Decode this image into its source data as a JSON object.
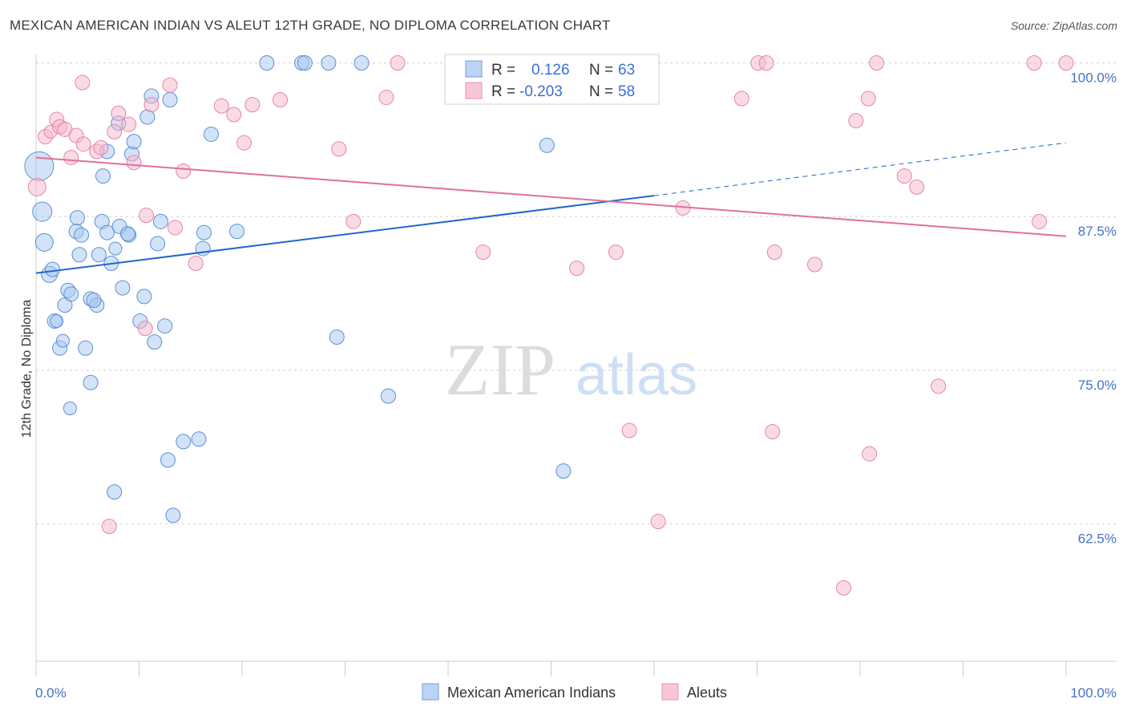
{
  "title": "MEXICAN AMERICAN INDIAN VS ALEUT 12TH GRADE, NO DIPLOMA CORRELATION CHART",
  "source": "Source: ZipAtlas.com",
  "watermark": {
    "zip": "ZIP",
    "atlas": "atlas"
  },
  "colors": {
    "blue_fill": "#a8c8f0",
    "blue_stroke": "#5b8fd6",
    "blue_line": "#2266cc",
    "pink_fill": "#f6b8cb",
    "pink_stroke": "#e585a4",
    "pink_line": "#e0709a",
    "axis_label": "#4472c4",
    "grid": "#d0d0d0"
  },
  "legend": {
    "r_label": "R =",
    "n_label": "N =",
    "series": [
      {
        "r": "0.126",
        "n": "63"
      },
      {
        "r": "-0.203",
        "n": "58"
      }
    ]
  },
  "bottom_legend": [
    "Mexican American Indians",
    "Aleuts"
  ],
  "chart_data": {
    "type": "scatter",
    "ylabel": "12th Grade, No Diploma",
    "xlim": [
      0,
      100
    ],
    "ylim": [
      50,
      102
    ],
    "x_tick_labels": [
      "0.0%",
      "100.0%"
    ],
    "y_ticks": [
      100,
      87.5,
      75,
      62.5
    ],
    "y_tick_labels": [
      "100.0%",
      "87.5%",
      "75.0%",
      "62.5%"
    ],
    "grid": true,
    "series": [
      {
        "name": "Mexican American Indians",
        "color": "blue",
        "trend": {
          "x0": 0,
          "y0": 82.9,
          "x1": 60,
          "y1": 89.2,
          "dash_x1": 100,
          "dash_y1": 93.5
        },
        "points": [
          [
            0.3,
            91.6,
            18
          ],
          [
            0.6,
            87.9,
            12
          ],
          [
            0.8,
            85.4,
            11
          ],
          [
            1.3,
            82.8,
            10
          ],
          [
            1.6,
            83.2,
            9
          ],
          [
            1.8,
            79,
            9
          ],
          [
            2.3,
            76.8,
            9
          ],
          [
            2.0,
            79,
            8
          ],
          [
            2.6,
            77.4,
            8
          ],
          [
            2.8,
            80.3,
            9
          ],
          [
            3.1,
            81.5,
            9
          ],
          [
            3.4,
            81.2,
            9
          ],
          [
            3.3,
            71.9,
            8
          ],
          [
            4.0,
            87.4,
            9
          ],
          [
            3.9,
            86.3,
            9
          ],
          [
            4.2,
            84.4,
            9
          ],
          [
            4.4,
            86,
            9
          ],
          [
            4.8,
            76.8,
            9
          ],
          [
            5.3,
            74,
            9
          ],
          [
            5.3,
            80.8,
            9
          ],
          [
            5.9,
            80.3,
            9
          ],
          [
            5.6,
            80.7,
            9
          ],
          [
            6.1,
            84.4,
            9
          ],
          [
            6.4,
            87.1,
            9
          ],
          [
            6.9,
            86.2,
            9
          ],
          [
            7.3,
            83.7,
            9
          ],
          [
            7.7,
            84.9,
            8
          ],
          [
            8.1,
            86.7,
            9
          ],
          [
            8.4,
            81.7,
            9
          ],
          [
            9.0,
            86,
            9
          ],
          [
            8.9,
            86.1,
            9
          ],
          [
            9.3,
            92.6,
            9
          ],
          [
            9.5,
            93.6,
            9
          ],
          [
            8.0,
            95.1,
            9
          ],
          [
            10.1,
            79,
            9
          ],
          [
            10.5,
            81,
            9
          ],
          [
            11.2,
            97.3,
            9
          ],
          [
            10.8,
            95.6,
            9
          ],
          [
            11.5,
            77.3,
            9
          ],
          [
            11.8,
            85.3,
            9
          ],
          [
            12.1,
            87.1,
            9
          ],
          [
            12.5,
            78.6,
            9
          ],
          [
            13.0,
            97,
            9
          ],
          [
            6.5,
            90.8,
            9
          ],
          [
            6.9,
            92.8,
            9
          ],
          [
            7.6,
            65.1,
            9
          ],
          [
            12.8,
            67.7,
            9
          ],
          [
            13.3,
            63.2,
            9
          ],
          [
            14.3,
            69.2,
            9
          ],
          [
            15.8,
            69.4,
            9
          ],
          [
            16.2,
            84.9,
            9
          ],
          [
            16.3,
            86.2,
            9
          ],
          [
            17.0,
            94.2,
            9
          ],
          [
            19.5,
            86.3,
            9
          ],
          [
            22.4,
            100,
            9
          ],
          [
            25.8,
            100,
            9
          ],
          [
            26.1,
            100,
            9
          ],
          [
            28.4,
            100,
            9
          ],
          [
            31.6,
            100,
            9
          ],
          [
            29.2,
            77.7,
            9
          ],
          [
            34.2,
            72.9,
            9
          ],
          [
            49.6,
            93.3,
            9
          ],
          [
            51.2,
            66.8,
            9
          ]
        ]
      },
      {
        "name": "Aleuts",
        "color": "pink",
        "trend": {
          "x0": 0,
          "y0": 92.3,
          "x1": 100,
          "y1": 85.9
        },
        "points": [
          [
            0.1,
            89.9,
            11
          ],
          [
            0.9,
            94,
            9
          ],
          [
            1.4,
            94.4,
            8
          ],
          [
            2.0,
            95.4,
            9
          ],
          [
            2.3,
            94.8,
            9
          ],
          [
            2.8,
            94.6,
            9
          ],
          [
            3.4,
            92.3,
            9
          ],
          [
            3.9,
            94.1,
            9
          ],
          [
            4.6,
            93.4,
            9
          ],
          [
            4.5,
            98.4,
            9
          ],
          [
            5.9,
            92.8,
            9
          ],
          [
            6.3,
            93.1,
            9
          ],
          [
            7.1,
            62.3,
            9
          ],
          [
            7.6,
            94.4,
            9
          ],
          [
            8.0,
            95.9,
            9
          ],
          [
            9.0,
            95,
            9
          ],
          [
            9.5,
            91.9,
            9
          ],
          [
            10.7,
            87.6,
            9
          ],
          [
            10.6,
            78.4,
            9
          ],
          [
            11.2,
            96.6,
            9
          ],
          [
            13.0,
            98.2,
            9
          ],
          [
            13.5,
            86.6,
            9
          ],
          [
            14.3,
            91.2,
            9
          ],
          [
            15.5,
            83.7,
            9
          ],
          [
            18.0,
            96.5,
            9
          ],
          [
            19.2,
            95.8,
            9
          ],
          [
            20.2,
            93.5,
            9
          ],
          [
            21.0,
            96.6,
            9
          ],
          [
            23.7,
            97,
            9
          ],
          [
            29.4,
            93,
            9
          ],
          [
            30.8,
            87.1,
            9
          ],
          [
            34.0,
            97.2,
            9
          ],
          [
            35.1,
            100,
            9
          ],
          [
            43.4,
            84.6,
            9
          ],
          [
            47.1,
            100,
            9
          ],
          [
            52.5,
            83.3,
            9
          ],
          [
            55.2,
            100,
            9
          ],
          [
            56.3,
            84.6,
            9
          ],
          [
            57.6,
            70.1,
            9
          ],
          [
            60.4,
            62.7,
            9
          ],
          [
            62.8,
            88.2,
            9
          ],
          [
            68.5,
            97.1,
            9
          ],
          [
            70.1,
            100,
            9
          ],
          [
            70.9,
            100,
            9
          ],
          [
            71.7,
            84.6,
            9
          ],
          [
            71.5,
            70,
            9
          ],
          [
            75.6,
            83.6,
            9
          ],
          [
            78.4,
            57.3,
            9
          ],
          [
            79.6,
            95.3,
            9
          ],
          [
            80.8,
            97.1,
            9
          ],
          [
            80.9,
            68.2,
            9
          ],
          [
            81.6,
            100,
            9
          ],
          [
            84.3,
            90.8,
            9
          ],
          [
            85.5,
            89.9,
            9
          ],
          [
            87.6,
            73.7,
            9
          ],
          [
            96.9,
            100,
            9
          ],
          [
            97.4,
            87.1,
            9
          ],
          [
            100,
            100,
            9
          ]
        ]
      }
    ]
  }
}
